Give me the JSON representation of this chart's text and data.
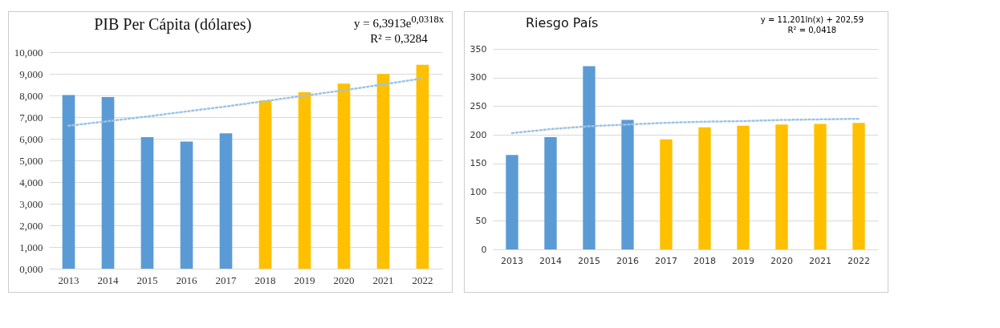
{
  "chart_data": [
    {
      "type": "bar",
      "title": "PIB Per Cápita (dólares)",
      "categories": [
        "2013",
        "2014",
        "2015",
        "2016",
        "2017",
        "2018",
        "2019",
        "2020",
        "2021",
        "2022"
      ],
      "series": [
        {
          "values": [
            8.02,
            7.93,
            6.07,
            5.87,
            6.25,
            7.77,
            8.15,
            8.55,
            8.99,
            9.42
          ],
          "colors": [
            "#5b9bd5",
            "#5b9bd5",
            "#5b9bd5",
            "#5b9bd5",
            "#5b9bd5",
            "#ffc000",
            "#ffc000",
            "#ffc000",
            "#ffc000",
            "#ffc000"
          ]
        },
        {
          "type": "line",
          "values": [
            6.6,
            6.81,
            7.03,
            7.26,
            7.49,
            7.74,
            7.99,
            8.24,
            8.51,
            8.79
          ],
          "color": "#9dc3e6",
          "line_style": "dotted"
        }
      ],
      "ylim": [
        0,
        10
      ],
      "yticks": [
        {
          "value": 0,
          "label": "0,000"
        },
        {
          "value": 1,
          "label": "1,000"
        },
        {
          "value": 2,
          "label": "2,000"
        },
        {
          "value": 3,
          "label": "3,000"
        },
        {
          "value": 4,
          "label": "4,000"
        },
        {
          "value": 5,
          "label": "5,000"
        },
        {
          "value": 6,
          "label": "6,000"
        },
        {
          "value": 7,
          "label": "7,000"
        },
        {
          "value": 8,
          "label": "8,000"
        },
        {
          "value": 9,
          "label": "9,000"
        },
        {
          "value": 10,
          "label": "10,000"
        }
      ],
      "grid": "y",
      "annotations": [
        "y = 6,3913e$^{0,0318x}$",
        "R² = 0,3284"
      ]
    },
    {
      "type": "bar",
      "title": "Riesgo País",
      "categories": [
        "2013",
        "2014",
        "2015",
        "2016",
        "2017",
        "2018",
        "2019",
        "2020",
        "2021",
        "2022"
      ],
      "series": [
        {
          "values": [
            165,
            196,
            320,
            226,
            192,
            213,
            216,
            218,
            219,
            221
          ],
          "colors": [
            "#5b9bd5",
            "#5b9bd5",
            "#5b9bd5",
            "#5b9bd5",
            "#ffc000",
            "#ffc000",
            "#ffc000",
            "#ffc000",
            "#ffc000",
            "#ffc000"
          ]
        },
        {
          "type": "line",
          "values": [
            203,
            210,
            215,
            218,
            221,
            223,
            224,
            226,
            227,
            228
          ],
          "color": "#9dc3e6",
          "line_style": "dotted"
        }
      ],
      "ylim": [
        0,
        350
      ],
      "yticks": [
        0,
        50,
        100,
        150,
        200,
        250,
        300,
        350
      ],
      "grid": "y",
      "annotations": [
        "y = 11,201ln(x) + 202,59",
        "R² = 0,0418"
      ]
    }
  ]
}
